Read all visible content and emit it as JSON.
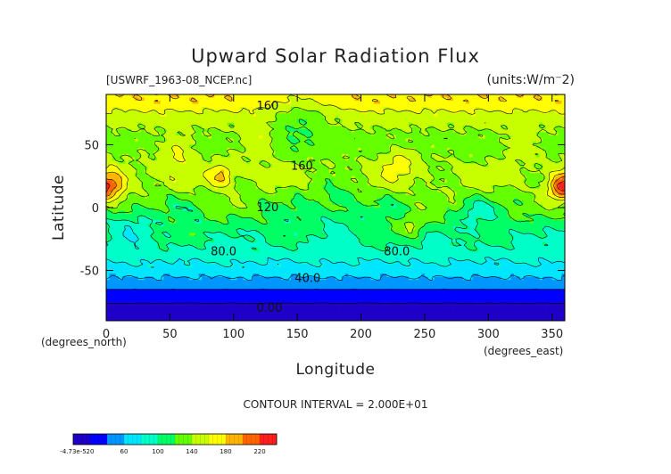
{
  "chart_data": {
    "type": "heatmap",
    "title": "Upward Solar Radiation Flux",
    "file_label": "[USWRF_1963-08_NCEP.nc]",
    "units_label": "(units:W/m⁻2)",
    "xlabel": "Longitude",
    "ylabel": "Latitude",
    "x_unit_label": "(degrees_east)",
    "y_unit_label": "(degrees_north)",
    "xlim": [
      0,
      360
    ],
    "ylim": [
      -90,
      90
    ],
    "x_ticks": [
      0,
      50,
      100,
      150,
      200,
      250,
      300,
      350
    ],
    "y_ticks": [
      50,
      0,
      -50
    ],
    "contour_interval_text": "CONTOUR INTERVAL = 2.000E+01",
    "contour_labels": [
      {
        "text": "160",
        "lon": 118,
        "lat": 78
      },
      {
        "text": "160",
        "lon": 145,
        "lat": 30
      },
      {
        "text": "120",
        "lon": 118,
        "lat": -3
      },
      {
        "text": "80.0",
        "lon": 82,
        "lat": -38
      },
      {
        "text": "80.0",
        "lon": 218,
        "lat": -38
      },
      {
        "text": "40.0",
        "lon": 148,
        "lat": -59
      },
      {
        "text": "0.00",
        "lon": 118,
        "lat": -83
      }
    ],
    "colorbar": {
      "levels": [
        -4.73e-05,
        20,
        40,
        60,
        80,
        100,
        120,
        140,
        160,
        180,
        200,
        220,
        240
      ],
      "tick_labels": [
        "-4.73e-5",
        "20",
        "60",
        "100",
        "140",
        "180",
        "220"
      ],
      "colors": [
        "#1e00c8",
        "#0000ff",
        "#0096ff",
        "#00e6ff",
        "#00ffc8",
        "#00ff64",
        "#64ff00",
        "#c8ff00",
        "#ffff00",
        "#ffb400",
        "#ff6400",
        "#ff1e1e",
        "#ff9696"
      ]
    },
    "zonal_profile": [
      {
        "lat": -90,
        "value": 10
      },
      {
        "lat": -82,
        "value": 10
      },
      {
        "lat": -72,
        "value": 30
      },
      {
        "lat": -62,
        "value": 45
      },
      {
        "lat": -52,
        "value": 68
      },
      {
        "lat": -42,
        "value": 82
      },
      {
        "lat": -32,
        "value": 95
      },
      {
        "lat": -22,
        "value": 104
      },
      {
        "lat": -12,
        "value": 112
      },
      {
        "lat": -2,
        "value": 120
      },
      {
        "lat": 8,
        "value": 130
      },
      {
        "lat": 18,
        "value": 142
      },
      {
        "lat": 28,
        "value": 146
      },
      {
        "lat": 38,
        "value": 140
      },
      {
        "lat": 48,
        "value": 132
      },
      {
        "lat": 58,
        "value": 136
      },
      {
        "lat": 68,
        "value": 146
      },
      {
        "lat": 76,
        "value": 158
      },
      {
        "lat": 84,
        "value": 176
      },
      {
        "lat": 90,
        "value": 178
      }
    ],
    "hotspots": [
      {
        "lon": 5,
        "lat": 18,
        "radius": 12,
        "amp": 60
      },
      {
        "lon": 90,
        "lat": 25,
        "radius": 10,
        "amp": 45
      },
      {
        "lon": 55,
        "lat": 45,
        "radius": 12,
        "amp": 30
      },
      {
        "lon": 120,
        "lat": 55,
        "radius": 14,
        "amp": 25
      },
      {
        "lon": 230,
        "lat": 35,
        "radius": 12,
        "amp": 30
      },
      {
        "lon": 355,
        "lat": 15,
        "radius": 10,
        "amp": 55
      },
      {
        "lon": 240,
        "lat": -15,
        "radius": 10,
        "amp": 35
      },
      {
        "lon": 325,
        "lat": 50,
        "radius": 12,
        "amp": 20
      },
      {
        "lon": 20,
        "lat": -12,
        "radius": 15,
        "amp": -25
      },
      {
        "lon": 180,
        "lat": 5,
        "radius": 20,
        "amp": -20
      },
      {
        "lon": 290,
        "lat": -5,
        "radius": 12,
        "amp": -25
      },
      {
        "lon": 150,
        "lat": 72,
        "radius": 25,
        "amp": -25
      }
    ]
  }
}
